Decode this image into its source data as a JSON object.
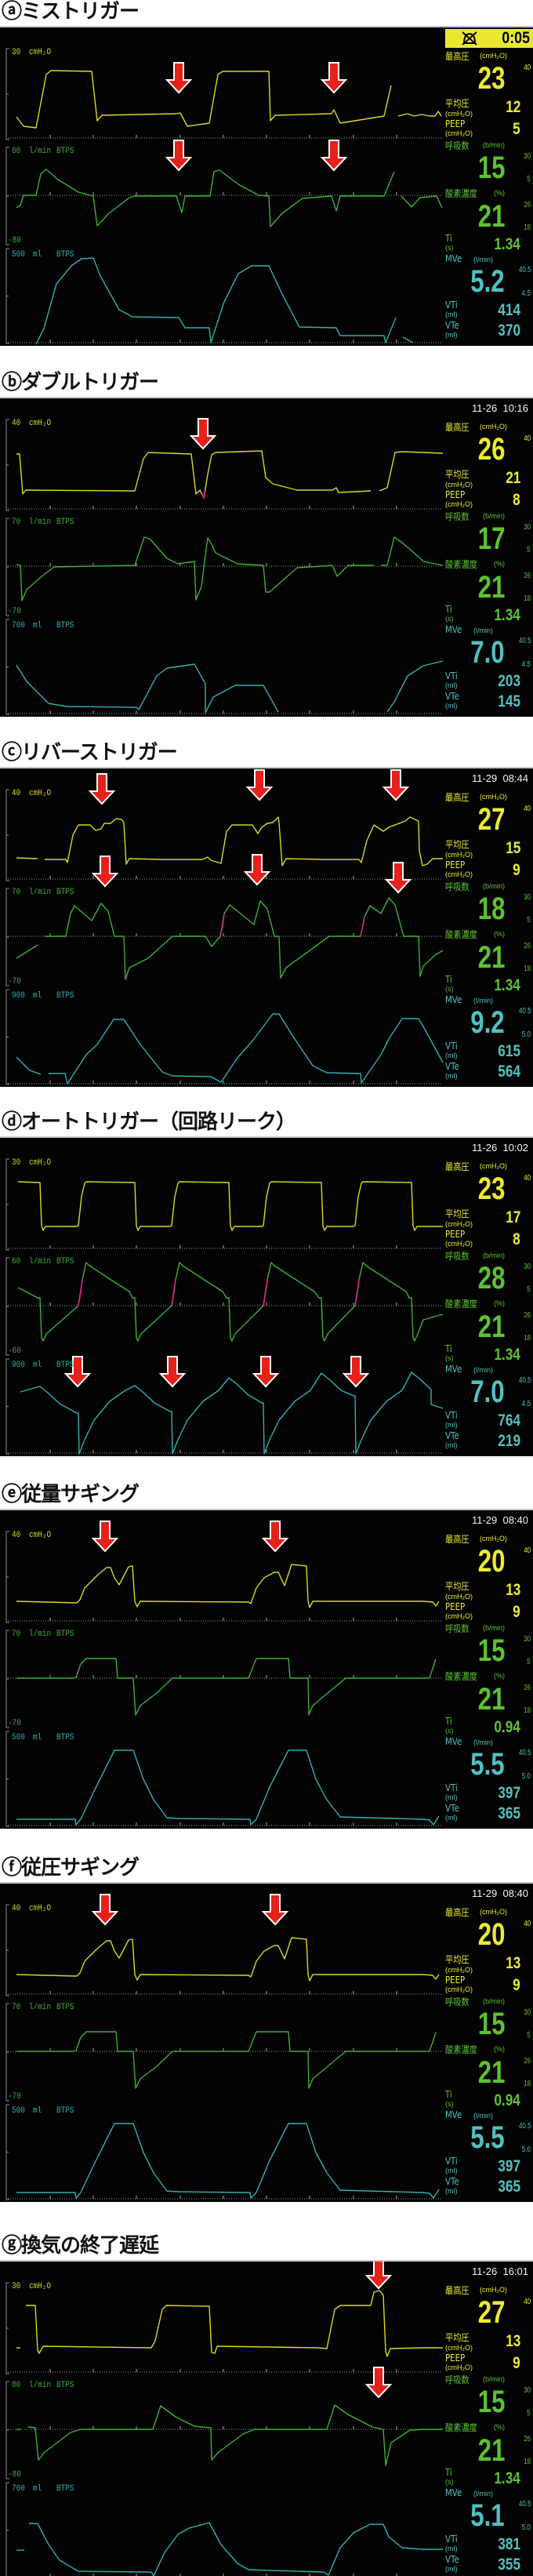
{
  "labels": {
    "peak": "最高圧",
    "mean": "平均圧",
    "peep": "PEEP",
    "rr": "呼吸数",
    "o2": "酸素濃度",
    "ti": "Ti",
    "mve": "MVe",
    "vti": "VTi",
    "vte": "VTe",
    "unit_cmh2o": "(cmH₂O)",
    "unit_bmin": "(b/min)",
    "unit_pct": "(%)",
    "unit_s": "(s)",
    "unit_lmin": "(l/min)",
    "unit_ml": "(ml)",
    "pressure_unit": "cmH₂O",
    "flow_unit": "l/min",
    "volume_unit": "ml",
    "btps": "BTPS"
  },
  "colors": {
    "pressure": "#d8d820",
    "flow": "#3eb032",
    "volume": "#2fb0b0",
    "param_yellow": "#ecec2c",
    "param_green": "#5cc230",
    "param_cyan": "#52c0c0",
    "arrow": "#e8201a",
    "trigger_mark": "#e0208c"
  },
  "panels": [
    {
      "id": "a",
      "title": "ⓐミストリガー",
      "header": {
        "type": "alarm",
        "icon": "alarm-silenced-icon",
        "time": "0:05"
      },
      "scales": {
        "pressure": "30",
        "flow": "80",
        "flow_min": "-80",
        "volume": "500"
      },
      "params": {
        "peak": "23",
        "peak_limit": "40",
        "mean": "12",
        "peep": "5",
        "rr": "15",
        "rr_hi": "30",
        "rr_lo": "5",
        "o2": "21",
        "o2_hi": "26",
        "o2_lo": "18",
        "ti": "1.34",
        "mve": "5.2",
        "mve_hi": "40.5",
        "mve_lo": "4.5",
        "vti": "414",
        "vte": "370"
      }
    },
    {
      "id": "b",
      "title": "ⓑダブルトリガー",
      "header": {
        "type": "time",
        "time": "11-26  10:16"
      },
      "scales": {
        "pressure": "40",
        "flow": "70",
        "flow_min": "-70",
        "volume": "700"
      },
      "params": {
        "peak": "26",
        "peak_limit": "40",
        "mean": "21",
        "peep": "8",
        "rr": "17",
        "rr_hi": "30",
        "rr_lo": "5",
        "o2": "21",
        "o2_hi": "26",
        "o2_lo": "18",
        "ti": "1.34",
        "mve": "7.0",
        "mve_hi": "40.5",
        "mve_lo": "4.5",
        "vti": "203",
        "vte": "145"
      }
    },
    {
      "id": "c",
      "title": "ⓒリバーストリガー",
      "header": {
        "type": "time",
        "time": "11-29  08:44"
      },
      "scales": {
        "pressure": "40",
        "flow": "70",
        "flow_min": "-70",
        "volume": "900"
      },
      "params": {
        "peak": "27",
        "peak_limit": "40",
        "mean": "15",
        "peep": "9",
        "rr": "18",
        "rr_hi": "30",
        "rr_lo": "5",
        "o2": "21",
        "o2_hi": "26",
        "o2_lo": "18",
        "ti": "1.34",
        "mve": "9.2",
        "mve_hi": "40.5",
        "mve_lo": "5.0",
        "vti": "615",
        "vte": "564"
      }
    },
    {
      "id": "d",
      "title": "ⓓオートトリガー（回路リーク）",
      "header": {
        "type": "time",
        "time": "11-26  10:02"
      },
      "scales": {
        "pressure": "30",
        "flow": "60",
        "flow_min": "-60",
        "volume": "900"
      },
      "params": {
        "peak": "23",
        "peak_limit": "40",
        "mean": "17",
        "peep": "8",
        "rr": "28",
        "rr_hi": "30",
        "rr_lo": "5",
        "o2": "21",
        "o2_hi": "26",
        "o2_lo": "18",
        "ti": "1.34",
        "mve": "7.0",
        "mve_hi": "40.5",
        "mve_lo": "4.5",
        "vti": "764",
        "vte": "219"
      }
    },
    {
      "id": "e",
      "title": "ⓔ従量サギング",
      "header": {
        "type": "time",
        "time": "11-29  08:40"
      },
      "scales": {
        "pressure": "40",
        "flow": "70",
        "flow_min": "-70",
        "volume": "500"
      },
      "params": {
        "peak": "20",
        "peak_limit": "40",
        "mean": "13",
        "peep": "9",
        "rr": "15",
        "rr_hi": "30",
        "rr_lo": "5",
        "o2": "21",
        "o2_hi": "26",
        "o2_lo": "18",
        "ti": "0.94",
        "mve": "5.5",
        "mve_hi": "40.5",
        "mve_lo": "5.0",
        "vti": "397",
        "vte": "365"
      }
    },
    {
      "id": "f",
      "title": "ⓕ従圧サギング",
      "header": {
        "type": "time",
        "time": "11-29  08:40"
      },
      "scales": {
        "pressure": "40",
        "flow": "70",
        "flow_min": "-70",
        "volume": "500"
      },
      "params": {
        "peak": "20",
        "peak_limit": "40",
        "mean": "13",
        "peep": "9",
        "rr": "15",
        "rr_hi": "30",
        "rr_lo": "5",
        "o2": "21",
        "o2_hi": "26",
        "o2_lo": "18",
        "ti": "0.94",
        "mve": "5.5",
        "mve_hi": "40.5",
        "mve_lo": "5.0",
        "vti": "397",
        "vte": "365"
      }
    },
    {
      "id": "g",
      "title": "ⓖ換気の終了遅延",
      "header": {
        "type": "time",
        "time": "11-26  16:01"
      },
      "scales": {
        "pressure": "30",
        "flow": "80",
        "flow_min": "-80",
        "volume": "700"
      },
      "params": {
        "peak": "27",
        "peak_limit": "40",
        "mean": "13",
        "peep": "9",
        "rr": "15",
        "rr_hi": "30",
        "rr_lo": "5",
        "o2": "21",
        "o2_hi": "26",
        "o2_lo": "18",
        "ti": "1.34",
        "mve": "5.1",
        "mve_hi": "40.5",
        "mve_lo": "5.0",
        "vti": "381",
        "vte": "355"
      }
    }
  ]
}
